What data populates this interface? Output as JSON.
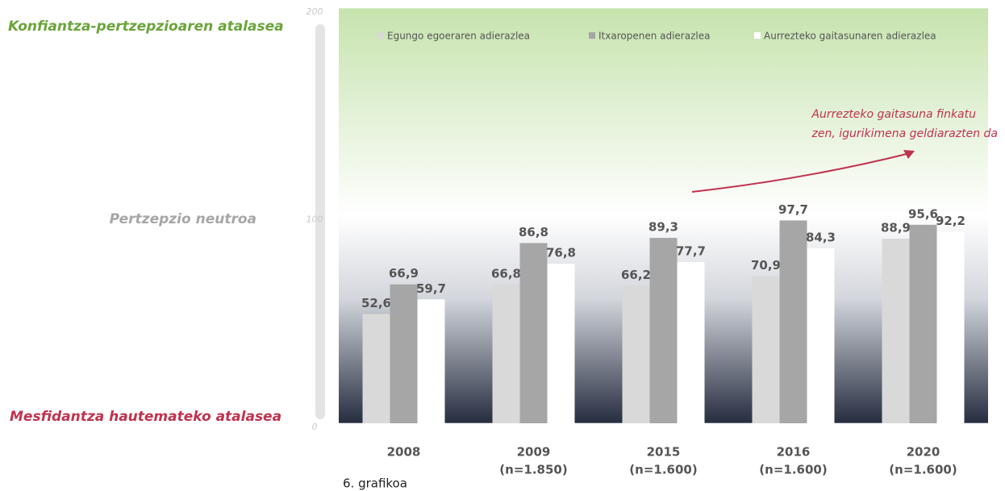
{
  "chart_data": {
    "type": "bar",
    "categories": [
      "2008",
      "2009",
      "2015",
      "2016",
      "2020"
    ],
    "category_notes": [
      null,
      "(n=1.850)",
      "(n=1.600)",
      "(n=1.600)",
      "(n=1.600)"
    ],
    "series": [
      {
        "name": "Egungo egoeraren adierazlea",
        "color": "#d9d9d9",
        "values": [
          52.6,
          66.8,
          66.2,
          70.9,
          88.9
        ],
        "value_labels": [
          "52,6",
          "66,8",
          "66,2",
          "70,9",
          "88,9"
        ]
      },
      {
        "name": "Itxaropenen adierazlea",
        "color": "#a6a6a6",
        "values": [
          66.9,
          86.8,
          89.3,
          97.7,
          95.6
        ],
        "value_labels": [
          "66,9",
          "86,8",
          "89,3",
          "97,7",
          "95,6"
        ]
      },
      {
        "name": "Aurrezteko gaitasunaren adierazlea",
        "color": "#ffffff",
        "values": [
          59.7,
          76.8,
          77.7,
          84.3,
          92.2
        ],
        "value_labels": [
          "59,7",
          "76,8",
          "77,7",
          "84,3",
          "92,2"
        ]
      }
    ],
    "ylim": [
      0,
      200
    ],
    "yticks": [
      0,
      100,
      200
    ],
    "grid": true,
    "zone_labels": {
      "top": "Konfiantza-pertzepzioaren atalasea",
      "middle": "Pertzepzio neutroa",
      "bottom": "Mesfidantza hautemateko atalasea"
    },
    "annotation": [
      "Aurrezteko gaitasuna finkatu",
      "zen, igurikimena geldiarazten da"
    ],
    "caption": "6. grafikoa"
  }
}
